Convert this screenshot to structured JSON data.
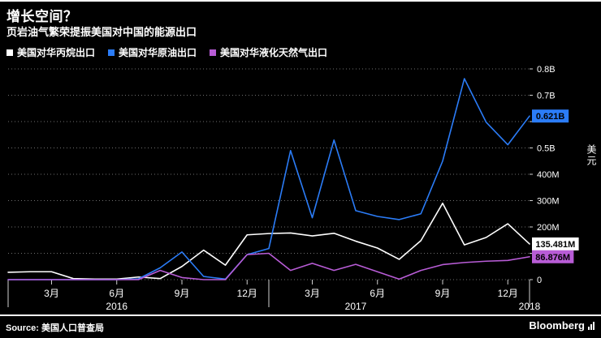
{
  "header": {
    "title": "增长空间？",
    "subtitle": "页岩油气繁荣提振美国对中国的能源出口"
  },
  "legend": {
    "items": [
      {
        "label": "美国对华丙烷出口",
        "color": "#ffffff"
      },
      {
        "label": "美国对华原油出口",
        "color": "#2b7cf7"
      },
      {
        "label": "美国对华液化天然气出口",
        "color": "#b85cd6"
      }
    ]
  },
  "axis": {
    "unit_label": "美元"
  },
  "footer": {
    "source": "Source: 美国人口普查局",
    "brand": "Bloomberg"
  },
  "chart_data": {
    "type": "line",
    "title": "增长空间？",
    "subtitle": "页岩油气繁荣提振美国对中国的能源出口",
    "ylabel": "美元",
    "y_unit": "millions of USD",
    "ylim": [
      0,
      800
    ],
    "grid": "dotted-horizontal",
    "legend_position": "top-left",
    "x": [
      "2016-01",
      "2016-02",
      "2016-03",
      "2016-04",
      "2016-05",
      "2016-06",
      "2016-07",
      "2016-08",
      "2016-09",
      "2016-10",
      "2016-11",
      "2016-12",
      "2017-01",
      "2017-02",
      "2017-03",
      "2017-04",
      "2017-05",
      "2017-06",
      "2017-07",
      "2017-08",
      "2017-09",
      "2017-10",
      "2017-11",
      "2017-12",
      "2018-01"
    ],
    "series": [
      {
        "name": "美国对华丙烷出口",
        "color": "#ffffff",
        "values": [
          28,
          30,
          30,
          4,
          2,
          2,
          10,
          4,
          50,
          112,
          55,
          170,
          175,
          177,
          166,
          176,
          146,
          120,
          77,
          148,
          290,
          132,
          160,
          212,
          135.481
        ]
      },
      {
        "name": "美国对华原油出口",
        "color": "#2b7cf7",
        "values": [
          0,
          0,
          0,
          0,
          0,
          0,
          3,
          45,
          105,
          12,
          2,
          95,
          118,
          490,
          235,
          530,
          262,
          240,
          228,
          250,
          450,
          763,
          598,
          512,
          621
        ]
      },
      {
        "name": "美国对华液化天然气出口",
        "color": "#b85cd6",
        "values": [
          0,
          0,
          0,
          0,
          0,
          0,
          0,
          35,
          8,
          0,
          0,
          95,
          100,
          35,
          62,
          35,
          58,
          30,
          2,
          35,
          57,
          65,
          70,
          73,
          86.876
        ]
      }
    ],
    "gridline_values": [
      0,
      100,
      200,
      300,
      400,
      500,
      600,
      700,
      800
    ],
    "y_ticks": [
      {
        "value": 800,
        "label": "0.8B"
      },
      {
        "value": 700,
        "label": "0.7B"
      },
      {
        "value": 500,
        "label": "0.5B"
      },
      {
        "value": 400,
        "label": "400M"
      },
      {
        "value": 300,
        "label": "300M"
      },
      {
        "value": 200,
        "label": "200M"
      },
      {
        "value": 0,
        "label": "0"
      }
    ],
    "x_ticks": [
      {
        "index": 2,
        "label": "3月"
      },
      {
        "index": 5,
        "label": "6月"
      },
      {
        "index": 8,
        "label": "9月"
      },
      {
        "index": 11,
        "label": "12月"
      },
      {
        "index": 14,
        "label": "3月"
      },
      {
        "index": 17,
        "label": "6月"
      },
      {
        "index": 20,
        "label": "9月"
      },
      {
        "index": 23,
        "label": "12月"
      }
    ],
    "year_ticks": [
      {
        "index": 5,
        "label": "2016"
      },
      {
        "index": 16,
        "label": "2017"
      },
      {
        "index": 24,
        "label": "2018"
      }
    ],
    "year_boundary_indices": [
      0,
      12,
      24
    ],
    "end_labels": [
      {
        "text": "0.621B",
        "value": 621,
        "bg": "#2b7cf7"
      },
      {
        "text": "135.481M",
        "value": 135.481,
        "bg": "#ffffff"
      },
      {
        "text": "86.876M",
        "value": 86.876,
        "bg": "#b85cd6"
      }
    ]
  }
}
